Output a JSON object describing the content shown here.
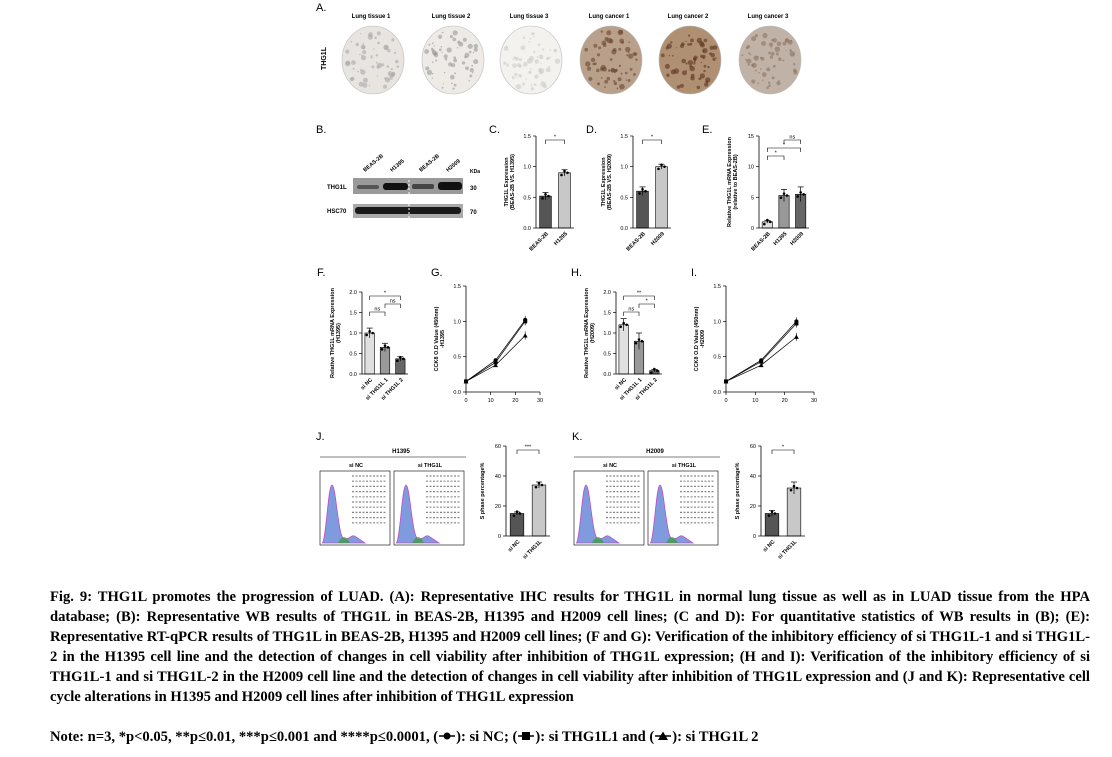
{
  "panels": {
    "A": {
      "label": "A.",
      "row_label": "THG1L",
      "columns": [
        "Lung tissue 1",
        "Lung tissue 2",
        "Lung tissue 3",
        "Lung cancer 1",
        "Lung cancer 2",
        "Lung cancer 3"
      ]
    },
    "B": {
      "label": "B.",
      "lanes": [
        "BEAS-2B",
        "H1395",
        "BEAS-2B",
        "H2009"
      ],
      "kda_label": "KDa",
      "rows": [
        {
          "name": "THG1L",
          "kda": "30"
        },
        {
          "name": "HSC70",
          "kda": "70"
        }
      ]
    },
    "J": {
      "label": "J.",
      "title": "H1395",
      "conditions": [
        "si NC",
        "si THG1L"
      ]
    },
    "K": {
      "label": "K.",
      "title": "H2009",
      "conditions": [
        "si NC",
        "si THG1L"
      ]
    }
  },
  "chart_data": [
    {
      "panel": "C.",
      "type": "bar",
      "ylabel": "THG1L Expression\n(BEAS-2B VS. H1395)",
      "categories": [
        "BEAS-2B",
        "H1395"
      ],
      "values": [
        0.52,
        0.9
      ],
      "errors": [
        0.06,
        0.05
      ],
      "ylim": [
        0,
        1.5
      ],
      "yticks": [
        "0.0",
        "0.5",
        "1.0",
        "1.5"
      ],
      "sig": [
        {
          "from": 0,
          "to": 1,
          "label": "*"
        }
      ]
    },
    {
      "panel": "D.",
      "type": "bar",
      "ylabel": "THG1L Expression\n(BEAS-2B VS. H2009)",
      "categories": [
        "BEAS-2B",
        "H2009"
      ],
      "values": [
        0.6,
        1.0
      ],
      "errors": [
        0.07,
        0.04
      ],
      "ylim": [
        0,
        1.5
      ],
      "yticks": [
        "0.0",
        "0.5",
        "1.0",
        "1.5"
      ],
      "sig": [
        {
          "from": 0,
          "to": 1,
          "label": "*"
        }
      ]
    },
    {
      "panel": "E.",
      "type": "bar",
      "ylabel": "Relative THG1L mRNA Expression\n(relative to BEAS-2B)",
      "categories": [
        "BEAS-2B",
        "H1395",
        "H2009"
      ],
      "values": [
        1.0,
        5.3,
        5.5
      ],
      "errors": [
        0.2,
        1.0,
        1.2
      ],
      "ylim": [
        0,
        15
      ],
      "yticks": [
        "0",
        "5",
        "10",
        "15"
      ],
      "sig": [
        {
          "from": 0,
          "to": 1,
          "label": "*"
        },
        {
          "from": 0,
          "to": 2,
          "label": "*"
        },
        {
          "from": 1,
          "to": 2,
          "label": "ns"
        }
      ]
    },
    {
      "panel": "F.",
      "type": "bar",
      "ylabel": "Relative THG1L mRNA Expression\n(H1395)",
      "categories": [
        "si NC",
        "si THG1L 1",
        "si THG1L 2"
      ],
      "values": [
        1.0,
        0.65,
        0.37
      ],
      "errors": [
        0.12,
        0.1,
        0.05
      ],
      "ylim": [
        0,
        2.0
      ],
      "yticks": [
        "0.0",
        "0.5",
        "1.0",
        "1.5",
        "2.0"
      ],
      "sig": [
        {
          "from": 0,
          "to": 1,
          "label": "ns"
        },
        {
          "from": 1,
          "to": 2,
          "label": "ns"
        },
        {
          "from": 0,
          "to": 2,
          "label": "*"
        }
      ]
    },
    {
      "panel": "G.",
      "type": "line",
      "ylabel": "CCK8 O.D Value (450nm)\n-H1395",
      "x": [
        0,
        12,
        24
      ],
      "xlim": [
        0,
        30
      ],
      "xticks": [
        "0",
        "10",
        "20",
        "30"
      ],
      "ylim": [
        0,
        1.5
      ],
      "yticks": [
        "0.0",
        "0.5",
        "1.0",
        "1.5"
      ],
      "series": [
        {
          "marker": "circle",
          "values": [
            0.15,
            0.45,
            1.02
          ]
        },
        {
          "marker": "square",
          "values": [
            0.15,
            0.42,
            1.0
          ]
        },
        {
          "marker": "triangle",
          "values": [
            0.15,
            0.38,
            0.8
          ]
        }
      ]
    },
    {
      "panel": "H.",
      "type": "bar",
      "ylabel": "Relative THG1L mRNA Expression\n(H2009)",
      "categories": [
        "si NC",
        "si THG1L 1",
        "si THG1L 2"
      ],
      "values": [
        1.2,
        0.8,
        0.08
      ],
      "errors": [
        0.15,
        0.2,
        0.03
      ],
      "ylim": [
        0,
        2.0
      ],
      "yticks": [
        "0.0",
        "0.5",
        "1.0",
        "1.5",
        "2.0"
      ],
      "sig": [
        {
          "from": 0,
          "to": 1,
          "label": "ns"
        },
        {
          "from": 1,
          "to": 2,
          "label": "*"
        },
        {
          "from": 0,
          "to": 2,
          "label": "**"
        }
      ]
    },
    {
      "panel": "I.",
      "type": "line",
      "ylabel": "CCK8 O.D Value (450nm)\n-H2009",
      "x": [
        0,
        12,
        24
      ],
      "xlim": [
        0,
        30
      ],
      "xticks": [
        "0",
        "10",
        "20",
        "30"
      ],
      "ylim": [
        0,
        1.5
      ],
      "yticks": [
        "0.0",
        "0.5",
        "1.0",
        "1.5"
      ],
      "series": [
        {
          "marker": "circle",
          "values": [
            0.15,
            0.45,
            1.0
          ]
        },
        {
          "marker": "square",
          "values": [
            0.15,
            0.43,
            0.97
          ]
        },
        {
          "marker": "triangle",
          "values": [
            0.15,
            0.38,
            0.78
          ]
        }
      ]
    },
    {
      "panel": "J2",
      "type": "bar",
      "ylabel": "S phase percentage%",
      "categories": [
        "si NC",
        "si THG1L"
      ],
      "values": [
        15,
        34
      ],
      "errors": [
        1,
        2
      ],
      "ylim": [
        0,
        60
      ],
      "yticks": [
        "0",
        "20",
        "40",
        "60"
      ],
      "sig": [
        {
          "from": 0,
          "to": 1,
          "label": "***"
        }
      ]
    },
    {
      "panel": "K2",
      "type": "bar",
      "ylabel": "S phase percentage%",
      "categories": [
        "si NC",
        "si THG1L"
      ],
      "values": [
        15,
        32
      ],
      "errors": [
        2,
        4
      ],
      "ylim": [
        0,
        60
      ],
      "yticks": [
        "0",
        "20",
        "40",
        "60"
      ],
      "sig": [
        {
          "from": 0,
          "to": 1,
          "label": "*"
        }
      ]
    }
  ],
  "caption": {
    "text": "Fig. 9: THG1L promotes the progression of LUAD. (A): Representative IHC results for THG1L in normal lung tissue as well as in LUAD tissue from the HPA database; (B): Representative WB results of THG1L in BEAS-2B, H1395 and H2009 cell lines; (C and D): For quantitative statistics of WB results in (B); (E): Representative RT-qPCR results of THG1L in BEAS-2B, H1395 and H2009 cell lines; (F and G): Verification of the inhibitory efficiency of si THG1L-1 and si THG1L-2 in the H1395 cell line and the detection of changes in cell viability after inhibition of THG1L expression; (H and I): Verification of the inhibitory efficiency of si THG1L-1 and si THG1L-2 in the H2009 cell line and the detection of changes in cell viability after inhibition of THG1L expression and (J and K): Representative cell cycle alterations in H1395 and H2009 cell lines after inhibition of THG1L expression",
    "note_prefix": "Note: n=3, *p<0.05, **p≤0.01, ***p≤0.001 and ****p≤0.0001, (",
    "note_nc": "): si NC; (",
    "note_l1": "): si THG1L1 and (",
    "note_l2": "): si THG1L 2"
  }
}
